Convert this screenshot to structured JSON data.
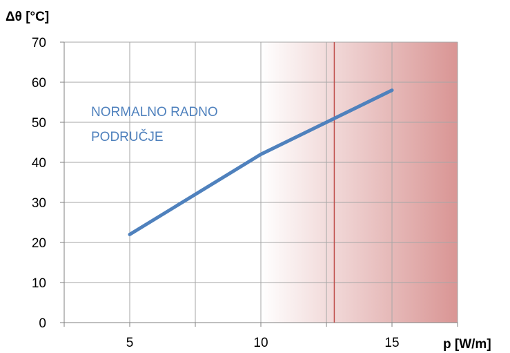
{
  "chart_data": {
    "type": "line",
    "ylabel": "Δθ [°C]",
    "xlabel": "p [W/m]",
    "xlim": [
      2.5,
      17.5
    ],
    "ylim": [
      0,
      70
    ],
    "x_ticks": [
      "5",
      "10",
      "15"
    ],
    "y_ticks": [
      "0",
      "10",
      "20",
      "30",
      "40",
      "50",
      "60",
      "70"
    ],
    "grid": true,
    "series": [
      {
        "x": [
          5,
          7.5,
          10,
          12.5,
          15
        ],
        "y": [
          22,
          32,
          42,
          50,
          58
        ]
      }
    ],
    "region": {
      "x_start": 10,
      "x_end": 17.5,
      "label_lines": [
        "NORMALNO RADNO",
        "PODRUČJE"
      ]
    },
    "limit_line_x": 12.8,
    "colors": {
      "line": "#4f81bd",
      "limit": "#c0504d",
      "region_end": "#d99594",
      "annotation": "#4f81bd"
    }
  }
}
